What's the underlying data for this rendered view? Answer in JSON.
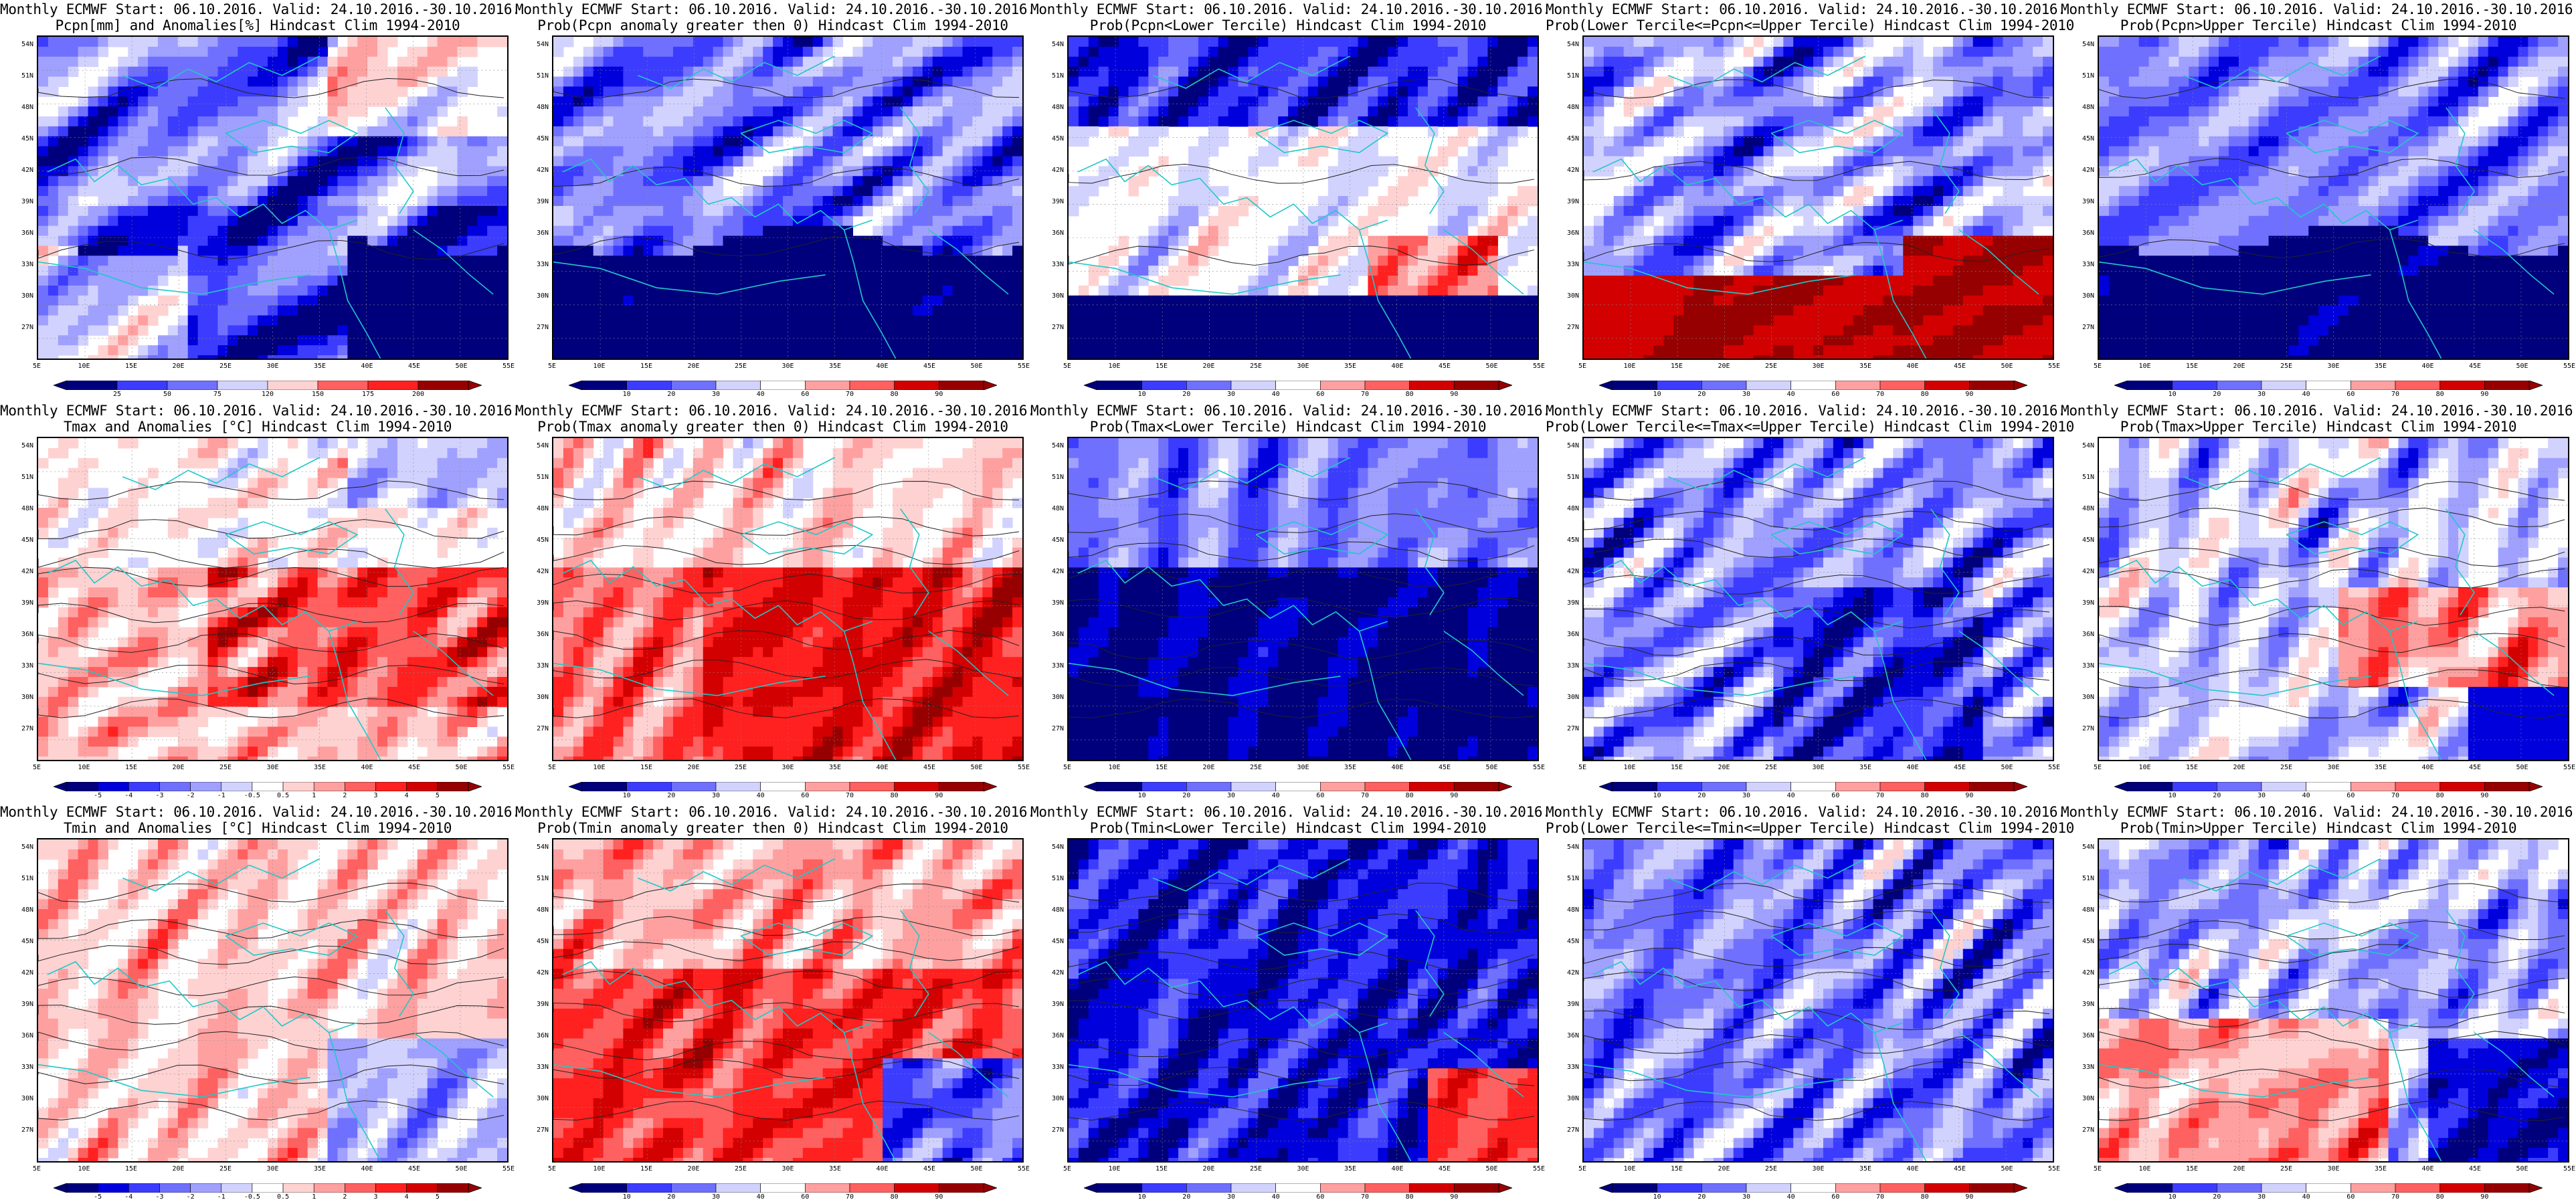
{
  "figure": {
    "latitude_labels": [
      "54N",
      "51N",
      "48N",
      "45N",
      "42N",
      "39N",
      "36N",
      "33N",
      "30N",
      "27N"
    ],
    "longitude_labels": [
      "5E",
      "10E",
      "15E",
      "20E",
      "25E",
      "30E",
      "35E",
      "40E",
      "45E",
      "50E",
      "55E"
    ]
  },
  "colorbars": {
    "pcpn_anom": [
      "25",
      "50",
      "75",
      "120",
      "150",
      "175",
      "200"
    ],
    "prob": [
      "10",
      "20",
      "30",
      "40",
      "60",
      "70",
      "80",
      "90"
    ],
    "temp_anom": [
      "-5",
      "-4",
      "-3",
      "-2",
      "-1",
      "-0.5",
      "0.5",
      "1",
      "2",
      "3",
      "4",
      "5"
    ]
  },
  "colors": {
    "blue_ramp": [
      "#00007d",
      "#0000dc",
      "#3c3cff",
      "#7070ff",
      "#a0a0ff",
      "#d2d2ff"
    ],
    "red_ramp": [
      "#ffd2d2",
      "#ffa0a0",
      "#ff6060",
      "#ff2020",
      "#d20000",
      "#960000"
    ],
    "coast": "#20c8c8",
    "contour": "#222222"
  },
  "panels": [
    {
      "line1": "Monthly ECMWF Start: 06.10.2016. Valid: 24.10.2016.-30.10.2016.",
      "line2": "Pcpn[mm] and Anomalies[%] Hindcast Clim 1994-2010",
      "pattern": "pcpn-anom",
      "colorbar": "pcpn_anom"
    },
    {
      "line1": "Monthly ECMWF Start: 06.10.2016. Valid: 24.10.2016.-30.10.2016.",
      "line2": "Prob(Pcpn anomaly greater then 0) Hindcast Clim 1994-2010",
      "pattern": "pcpn-prob-pos",
      "colorbar": "prob"
    },
    {
      "line1": "Monthly ECMWF Start: 06.10.2016. Valid: 24.10.2016.-30.10.2016.",
      "line2": "Prob(Pcpn<Lower Tercile) Hindcast Clim 1994-2010",
      "pattern": "pcpn-lower",
      "colorbar": "prob"
    },
    {
      "line1": "Monthly ECMWF Start: 06.10.2016. Valid: 24.10.2016.-30.10.2016.",
      "line2": "Prob(Lower Tercile<=Pcpn<=Upper Tercile) Hindcast Clim 1994-2010",
      "pattern": "pcpn-middle",
      "colorbar": "prob"
    },
    {
      "line1": "Monthly ECMWF Start: 06.10.2016. Valid: 24.10.2016.-30.10.2016.",
      "line2": "Prob(Pcpn>Upper Tercile) Hindcast Clim 1994-2010",
      "pattern": "pcpn-upper",
      "colorbar": "prob"
    },
    {
      "line1": "Monthly ECMWF Start: 06.10.2016. Valid: 24.10.2016.-30.10.2016.",
      "line2": "Tmax and Anomalies [°C] Hindcast Clim 1994-2010",
      "pattern": "tmax-anom",
      "colorbar": "temp_anom"
    },
    {
      "line1": "Monthly ECMWF Start: 06.10.2016. Valid: 24.10.2016.-30.10.2016.",
      "line2": "Prob(Tmax anomaly greater then 0) Hindcast Clim 1994-2010",
      "pattern": "tmax-prob-pos",
      "colorbar": "prob"
    },
    {
      "line1": "Monthly ECMWF Start: 06.10.2016. Valid: 24.10.2016.-30.10.2016.",
      "line2": "Prob(Tmax<Lower Tercile) Hindcast Clim 1994-2010",
      "pattern": "tmax-lower",
      "colorbar": "prob"
    },
    {
      "line1": "Monthly ECMWF Start: 06.10.2016. Valid: 24.10.2016.-30.10.2016.",
      "line2": "Prob(Lower Tercile<=Tmax<=Upper Tercile) Hindcast Clim 1994-2010",
      "pattern": "tmax-middle",
      "colorbar": "prob"
    },
    {
      "line1": "Monthly ECMWF Start: 06.10.2016. Valid: 24.10.2016.-30.10.2016.",
      "line2": "Prob(Tmax>Upper Tercile) Hindcast Clim 1994-2010",
      "pattern": "tmax-upper",
      "colorbar": "prob"
    },
    {
      "line1": "Monthly ECMWF Start: 06.10.2016. Valid: 24.10.2016.-30.10.2016.",
      "line2": "Tmin and Anomalies [°C] Hindcast Clim 1994-2010",
      "pattern": "tmin-anom",
      "colorbar": "temp_anom"
    },
    {
      "line1": "Monthly ECMWF Start: 06.10.2016. Valid: 24.10.2016.-30.10.2016.",
      "line2": "Prob(Tmin anomaly greater then 0) Hindcast Clim 1994-2010",
      "pattern": "tmin-prob-pos",
      "colorbar": "prob"
    },
    {
      "line1": "Monthly ECMWF Start: 06.10.2016. Valid: 24.10.2016.-30.10.2016.",
      "line2": "Prob(Tmin<Lower Tercile) Hindcast Clim 1994-2010",
      "pattern": "tmin-lower",
      "colorbar": "prob"
    },
    {
      "line1": "Monthly ECMWF Start: 06.10.2016. Valid: 24.10.2016.-30.10.2016.",
      "line2": "Prob(Lower Tercile<=Tmin<=Upper Tercile) Hindcast Clim 1994-2010",
      "pattern": "tmin-middle",
      "colorbar": "prob"
    },
    {
      "line1": "Monthly ECMWF Start: 06.10.2016. Valid: 24.10.2016.-30.10.2016.",
      "line2": "Prob(Tmin>Upper Tercile) Hindcast Clim 1994-2010",
      "pattern": "tmin-upper",
      "colorbar": "prob"
    }
  ]
}
